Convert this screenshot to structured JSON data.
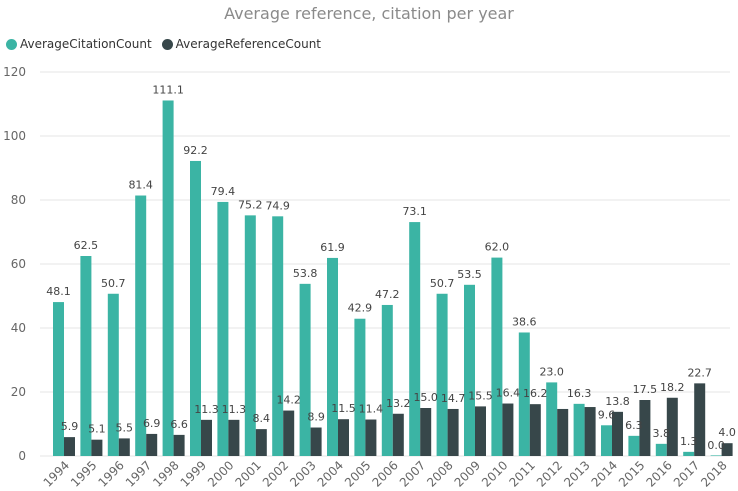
{
  "chart_data": {
    "type": "bar",
    "title": "Average reference, citation per year",
    "xlabel": "",
    "ylabel": "",
    "ylim": [
      0,
      120
    ],
    "yticks": [
      0,
      20,
      40,
      60,
      80,
      100,
      120
    ],
    "grid": true,
    "legend_position": "top-left",
    "categories": [
      "1994",
      "1995",
      "1996",
      "1997",
      "1998",
      "1999",
      "2000",
      "2001",
      "2002",
      "2003",
      "2004",
      "2005",
      "2006",
      "2007",
      "2008",
      "2009",
      "2010",
      "2011",
      "2012",
      "2013",
      "2014",
      "2015",
      "2016",
      "2017",
      "2018"
    ],
    "series": [
      {
        "name": "AverageCitationCount",
        "color": "#3bb4a4",
        "values": [
          48.1,
          62.5,
          50.7,
          81.4,
          111.1,
          92.2,
          79.4,
          75.2,
          74.9,
          53.8,
          61.9,
          42.9,
          47.2,
          73.1,
          50.7,
          53.5,
          62.0,
          38.6,
          23.0,
          16.3,
          9.6,
          6.3,
          3.8,
          1.3,
          0.0
        ],
        "labels": [
          "48.1",
          "62.5",
          "50.7",
          "81.4",
          "111.1",
          "92.2",
          "79.4",
          "75.2",
          "74.9",
          "53.8",
          "61.9",
          "42.9",
          "47.2",
          "73.1",
          "50.7",
          "53.5",
          "62.0",
          "38.6",
          "23.0",
          "16.3",
          "9.6",
          "6.3",
          "3.8",
          "1.3",
          "0.0"
        ]
      },
      {
        "name": "AverageReferenceCount",
        "color": "#37474a",
        "values": [
          5.9,
          5.1,
          5.5,
          6.9,
          6.6,
          11.3,
          11.3,
          8.4,
          14.2,
          8.9,
          11.5,
          11.4,
          13.2,
          15.0,
          14.7,
          15.5,
          16.4,
          16.2,
          14.7,
          15.3,
          13.8,
          17.5,
          18.2,
          22.7,
          4.0
        ],
        "labels": [
          "5.9",
          "5.1",
          "5.5",
          "6.9",
          "6.6",
          "11.3",
          "11.3",
          "8.4",
          "14.2",
          "8.9",
          "11.5",
          "11.4",
          "13.2",
          "15.0",
          "14.7",
          "15.5",
          "16.4",
          "16.2",
          "",
          "",
          "13.8",
          "17.5",
          "18.2",
          "22.7",
          "4.0"
        ]
      }
    ]
  }
}
